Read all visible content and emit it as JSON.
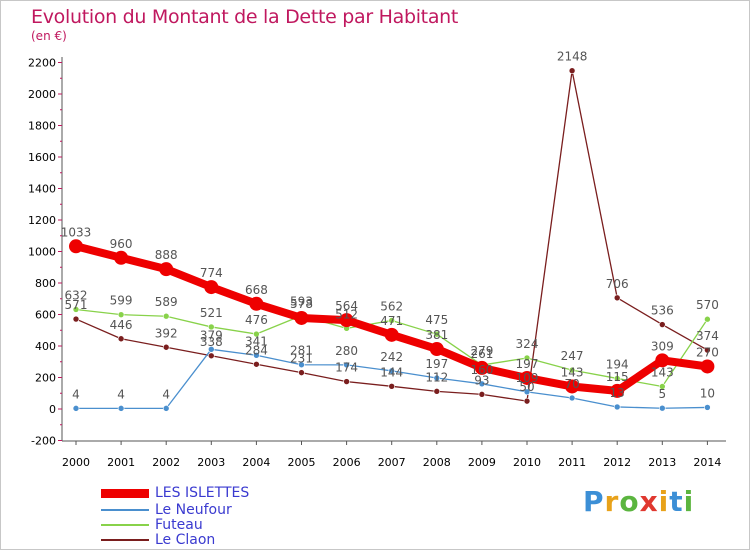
{
  "header": {
    "title": "Evolution du Montant de la Dette par Habitant",
    "subtitle": "(en €)"
  },
  "brand": {
    "letters": [
      "P",
      "r",
      "o",
      "x",
      "i",
      "t",
      "i"
    ],
    "colors": [
      "#3c8fd6",
      "#e8a21a",
      "#5bb53f",
      "#e0382f",
      "#e8a21a",
      "#3c8fd6",
      "#5bb53f"
    ]
  },
  "chart_data": {
    "type": "line",
    "title": "Evolution du Montant de la Dette par Habitant",
    "subtitle": "(en €)",
    "xlabel": "",
    "ylabel": "",
    "categories": [
      "2000",
      "2001",
      "2002",
      "2003",
      "2004",
      "2005",
      "2006",
      "2007",
      "2008",
      "2009",
      "2010",
      "2011",
      "2012",
      "2013",
      "2014"
    ],
    "ylim": [
      -200,
      2200
    ],
    "yticks": [
      -200,
      0,
      200,
      400,
      600,
      800,
      1000,
      1200,
      1400,
      1600,
      1800,
      2000,
      2200
    ],
    "ytick_labels": [
      "-200",
      "0",
      "200",
      "400",
      "600",
      "800",
      "1000",
      "1200",
      "1400",
      "1600",
      "1800",
      "2000",
      "2200"
    ],
    "grid": false,
    "legend_position": "bottom-left",
    "series": [
      {
        "name": "LES ISLETTES",
        "color": "#ee0000",
        "values": [
          1033,
          960,
          888,
          774,
          668,
          578,
          564,
          471,
          381,
          261,
          197,
          143,
          115,
          309,
          270
        ],
        "labels": [
          "1033",
          "960",
          "888",
          "774",
          "668",
          "578",
          "564",
          "471",
          "381",
          "261",
          "197",
          "143",
          "115",
          "309",
          "270"
        ]
      },
      {
        "name": "Le Neufour",
        "color": "#4a8fce",
        "values": [
          4,
          4,
          4,
          379,
          341,
          281,
          280,
          242,
          197,
          160,
          109,
          70,
          13,
          5,
          10
        ],
        "labels": [
          "4",
          "4",
          "4",
          "379",
          "341",
          "281",
          "280",
          "242",
          "197",
          "160",
          "109",
          "70",
          "13",
          "5",
          "10"
        ]
      },
      {
        "name": "Futeau",
        "color": "#88d24a",
        "values": [
          632,
          599,
          589,
          521,
          476,
          593,
          512,
          562,
          475,
          279,
          324,
          247,
          194,
          143,
          570
        ],
        "labels": [
          "632",
          "599",
          "589",
          "521",
          "476",
          "593",
          "512",
          "562",
          "475",
          "279",
          "324",
          "247",
          "194",
          "143",
          "570"
        ]
      },
      {
        "name": "Le Claon",
        "color": "#7a1e1e",
        "values": [
          571,
          446,
          392,
          338,
          284,
          231,
          174,
          144,
          112,
          93,
          50,
          2148,
          706,
          536,
          374
        ],
        "labels": [
          "571",
          "446",
          "392",
          "338",
          "284",
          "231",
          "174",
          "144",
          "112",
          "93",
          "50",
          "2148",
          "706",
          "536",
          "374"
        ]
      }
    ]
  }
}
